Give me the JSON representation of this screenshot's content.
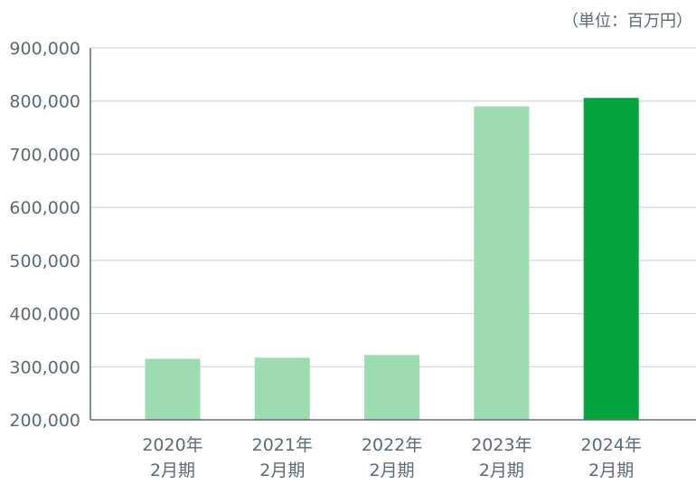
{
  "chart_data": {
    "type": "bar",
    "unit_label": "（単位：百万円）",
    "categories": [
      [
        "2020年",
        "2月期"
      ],
      [
        "2021年",
        "2月期"
      ],
      [
        "2022年",
        "2月期"
      ],
      [
        "2023年",
        "2月期"
      ],
      [
        "2024年",
        "2月期"
      ]
    ],
    "values": [
      315000,
      317000,
      322000,
      790000,
      806000
    ],
    "highlight_index": 4,
    "ylim": [
      200000,
      900000
    ],
    "yticks": [
      200000,
      300000,
      400000,
      500000,
      600000,
      700000,
      800000,
      900000
    ],
    "ytick_labels": [
      "200,000",
      "300,000",
      "400,000",
      "500,000",
      "600,000",
      "700,000",
      "800,000",
      "900,000"
    ],
    "grid": true,
    "colors": {
      "bar": "#9bddb1",
      "bar_highlight": "#00a63c",
      "grid": "#c8cdd0",
      "axis": "#5e6a72",
      "text": "#5e6a72"
    }
  }
}
